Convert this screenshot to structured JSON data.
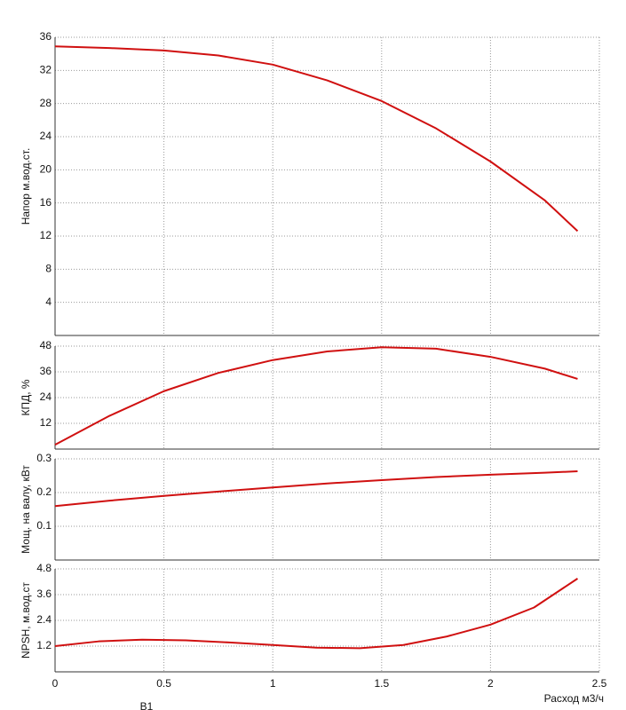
{
  "chart_data": [
    {
      "type": "line",
      "ylabel": "Напор м.вод.ст.",
      "x": [
        0,
        0.25,
        0.5,
        0.75,
        1,
        1.25,
        1.5,
        1.75,
        2,
        2.25,
        2.4
      ],
      "values": [
        34.9,
        34.7,
        34.4,
        33.8,
        32.7,
        30.8,
        28.3,
        25.0,
        21.0,
        16.3,
        12.6
      ],
      "color": "#d01010",
      "xlim": [
        0,
        2.5
      ],
      "xticks": [
        0,
        0.5,
        1,
        1.5,
        2,
        2.5
      ],
      "ylim": [
        0,
        36
      ],
      "yticks": [
        4,
        8,
        12,
        16,
        20,
        24,
        28,
        32,
        36
      ],
      "grid": true
    },
    {
      "type": "line",
      "ylabel": "КПД, %",
      "x": [
        0,
        0.25,
        0.5,
        0.75,
        1,
        1.25,
        1.5,
        1.75,
        2,
        2.25,
        2.4
      ],
      "values": [
        2,
        15.5,
        27,
        35.5,
        41.5,
        45.5,
        47.5,
        46.8,
        43,
        37.5,
        32.7
      ],
      "color": "#d01010",
      "xlim": [
        0,
        2.5
      ],
      "xticks": [
        0,
        0.5,
        1,
        1.5,
        2,
        2.5
      ],
      "ylim": [
        0,
        48
      ],
      "yticks": [
        12,
        24,
        36,
        48
      ],
      "grid": true
    },
    {
      "type": "line",
      "ylabel": "Мощ. на валу, кВт",
      "x": [
        0,
        0.25,
        0.5,
        0.75,
        1,
        1.25,
        1.5,
        1.75,
        2,
        2.25,
        2.4
      ],
      "values": [
        0.16,
        0.176,
        0.19,
        0.203,
        0.215,
        0.227,
        0.237,
        0.246,
        0.253,
        0.259,
        0.263
      ],
      "color": "#d01010",
      "xlim": [
        0,
        2.5
      ],
      "xticks": [
        0,
        0.5,
        1,
        1.5,
        2,
        2.5
      ],
      "ylim": [
        0,
        0.3
      ],
      "yticks": [
        0.1,
        0.2,
        0.3
      ],
      "grid": true
    },
    {
      "type": "line",
      "ylabel": "NPSH, м.вод.ст",
      "xlabel": "Расход м3/ч",
      "x": [
        0,
        0.2,
        0.4,
        0.6,
        0.8,
        1,
        1.2,
        1.4,
        1.6,
        1.8,
        2,
        2.2,
        2.4
      ],
      "values": [
        1.2,
        1.42,
        1.5,
        1.47,
        1.37,
        1.25,
        1.13,
        1.1,
        1.25,
        1.65,
        2.2,
        3.0,
        4.35
      ],
      "color": "#d01010",
      "xlim": [
        0,
        2.5
      ],
      "xticks": [
        0,
        0.5,
        1,
        1.5,
        2,
        2.5
      ],
      "ylim": [
        0,
        4.8
      ],
      "yticks": [
        1.2,
        2.4,
        3.6,
        4.8
      ],
      "grid": true
    }
  ],
  "footer": "В1"
}
